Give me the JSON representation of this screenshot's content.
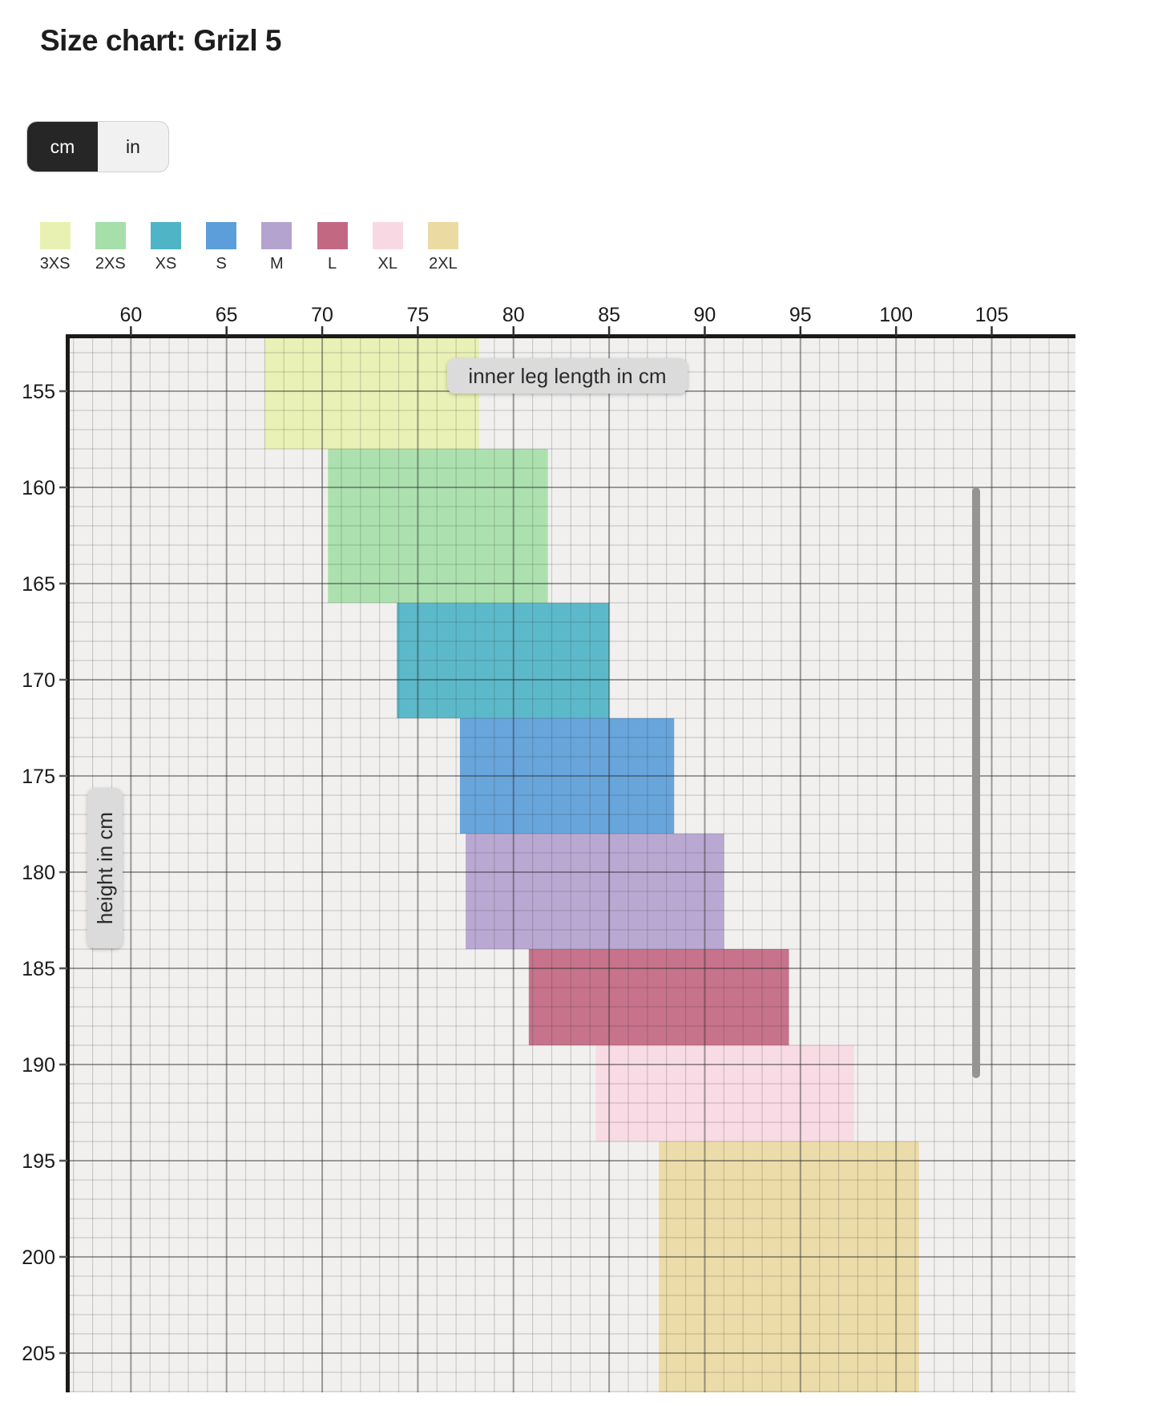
{
  "page": {
    "title": "Size chart: Grizl 5"
  },
  "unit_toggle": {
    "options": [
      {
        "label": "cm",
        "selected": true
      },
      {
        "label": "in",
        "selected": false
      }
    ]
  },
  "chart_data": {
    "type": "area",
    "subtype": "2d-range-rectangles",
    "title": "Size chart: Grizl 5",
    "xlabel": "inner leg length in cm",
    "ylabel": "height in cm",
    "x_axis": {
      "position": "top",
      "unit": "cm",
      "min": 56.7,
      "max": 109.4,
      "ticks": [
        60,
        65,
        70,
        75,
        80,
        85,
        90,
        95,
        100,
        105
      ],
      "minor_gridline_step": 1,
      "major_gridline_step": 5
    },
    "y_axis": {
      "position": "left",
      "unit": "cm",
      "direction": "down",
      "min": 152.3,
      "max": 207,
      "ticks": [
        155,
        160,
        165,
        170,
        175,
        180,
        185,
        190,
        195,
        200,
        205
      ],
      "minor_gridline_step": 1,
      "major_gridline_step": 5
    },
    "series": [
      {
        "size": "3XS",
        "color": "#e8f1b1",
        "inner_leg_cm": [
          67.0,
          78.2
        ],
        "height_cm": [
          152,
          158
        ]
      },
      {
        "size": "2XS",
        "color": "#a6dfa9",
        "inner_leg_cm": [
          70.3,
          81.8
        ],
        "height_cm": [
          158,
          166
        ]
      },
      {
        "size": "XS",
        "color": "#4fb4c5",
        "inner_leg_cm": [
          73.9,
          85.0
        ],
        "height_cm": [
          166,
          172
        ]
      },
      {
        "size": "S",
        "color": "#5c9ed9",
        "inner_leg_cm": [
          77.2,
          88.4
        ],
        "height_cm": [
          172,
          178
        ]
      },
      {
        "size": "M",
        "color": "#b4a3cf",
        "inner_leg_cm": [
          77.5,
          91.0
        ],
        "height_cm": [
          178,
          184
        ]
      },
      {
        "size": "L",
        "color": "#c26882",
        "inner_leg_cm": [
          80.8,
          94.4
        ],
        "height_cm": [
          184,
          189
        ]
      },
      {
        "size": "XL",
        "color": "#f8d9e3",
        "inner_leg_cm": [
          84.3,
          97.8
        ],
        "height_cm": [
          189,
          194
        ]
      },
      {
        "size": "2XL",
        "color": "#ecdaa3",
        "inner_leg_cm": [
          87.6,
          101.2
        ],
        "height_cm": [
          194,
          208
        ]
      }
    ],
    "legend_position": "top"
  }
}
